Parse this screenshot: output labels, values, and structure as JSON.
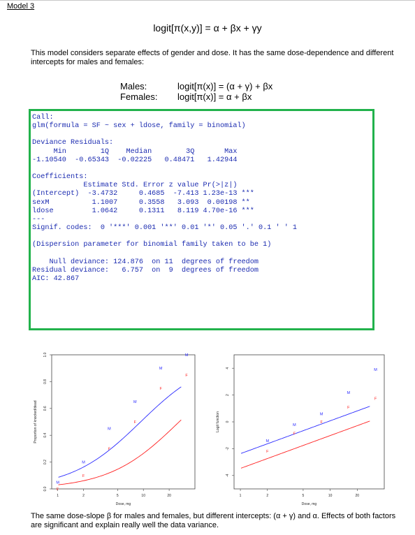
{
  "header": "Model 3",
  "formula": "logit[π(x,y)] = α + βx + γy",
  "intro": "This model considers separate effects of gender and dose. It has the same dose-dependence and different intercepts for males and females:",
  "models": [
    {
      "label": "Males:",
      "eq": "logit[π(x)] = (α + γ) + βx"
    },
    {
      "label": "Females:",
      "eq": "logit[π(x)] = α + βx"
    }
  ],
  "r_output": "Call:\nglm(formula = SF ~ sex + ldose, family = binomial)\n\nDeviance Residuals:\n     Min        1Q    Median        3Q       Max\n-1.10540  -0.65343  -0.02225   0.48471   1.42944\n\nCoefficients:\n            Estimate Std. Error z value Pr(>|z|)\n(Intercept)  -3.4732     0.4685  -7.413 1.23e-13 ***\nsexM          1.1007     0.3558   3.093  0.00198 **\nldose         1.0642     0.1311   8.119 4.70e-16 ***\n---\nSignif. codes:  0 '***' 0.001 '**' 0.01 '*' 0.05 '.' 0.1 ' ' 1\n\n(Dispersion parameter for binomial family taken to be 1)\n\n    Null deviance: 124.876  on 11  degrees of freedom\nResidual deviance:   6.757  on  9  degrees of freedom\nAIC: 42.867",
  "colors": {
    "panel_border": "#22b24c",
    "code_text": "#1b2bb0",
    "male": "#2b2bff",
    "female": "#ff2020"
  },
  "caption": "The same dose-slope β for males and females, but different intercepts: (α + γ) and α. Effects of both factors are significant and explain really well the data variance.",
  "chart_data": [
    {
      "type": "line",
      "xlabel": "Dose, mg",
      "ylabel": "Proportion of knocked/dead",
      "log_x": true,
      "xlim": [
        0.85,
        40
      ],
      "ylim": [
        0,
        1
      ],
      "x_ticks": [
        1,
        2,
        5,
        10,
        20
      ],
      "y_ticks": [
        0.0,
        0.2,
        0.4,
        0.6,
        0.8,
        1.0
      ],
      "y_tick_labels": [
        "0.0",
        "0.2",
        "0.4",
        "0.6",
        "0.8",
        "1.0"
      ],
      "series": [
        {
          "marker": "M",
          "color": "#2b2bff",
          "points": [
            [
              1,
              0.05
            ],
            [
              2,
              0.2
            ],
            [
              4,
              0.45
            ],
            [
              8,
              0.65
            ],
            [
              16,
              0.9
            ],
            [
              32,
              1.0
            ]
          ]
        },
        {
          "marker": "F",
          "color": "#ff2020",
          "points": [
            [
              1,
              0.0
            ],
            [
              2,
              0.1
            ],
            [
              4,
              0.3
            ],
            [
              8,
              0.5
            ],
            [
              16,
              0.75
            ],
            [
              32,
              0.85
            ]
          ]
        }
      ],
      "fits": [
        {
          "color": "#2b2bff",
          "intercept": -2.3725,
          "slope": 1.0642
        },
        {
          "color": "#ff2020",
          "intercept": -3.4732,
          "slope": 1.0642
        }
      ]
    },
    {
      "type": "line",
      "xlabel": "Dose, mg",
      "ylabel": "Logit function",
      "log_x": true,
      "xlim": [
        0.85,
        40
      ],
      "ylim": [
        -5,
        5
      ],
      "x_ticks": [
        1,
        2,
        5,
        10,
        20
      ],
      "y_ticks": [
        -4,
        -2,
        0,
        2,
        4
      ],
      "y_tick_labels": [
        "-4",
        "-2",
        "0",
        "2",
        "4"
      ],
      "series": [
        {
          "marker": "M",
          "color": "#2b2bff",
          "points": [
            [
              2,
              -1.4
            ],
            [
              4,
              -0.2
            ],
            [
              8,
              0.6
            ],
            [
              16,
              2.2
            ],
            [
              32,
              3.9
            ]
          ]
        },
        {
          "marker": "F",
          "color": "#ff2020",
          "points": [
            [
              2,
              -2.2
            ],
            [
              4,
              -0.85
            ],
            [
              8,
              0.0
            ],
            [
              16,
              1.1
            ],
            [
              32,
              1.75
            ]
          ]
        }
      ],
      "fits": [
        {
          "color": "#2b2bff",
          "intercept": -2.3725,
          "slope": 1.0642
        },
        {
          "color": "#ff2020",
          "intercept": -3.4732,
          "slope": 1.0642
        }
      ]
    }
  ]
}
